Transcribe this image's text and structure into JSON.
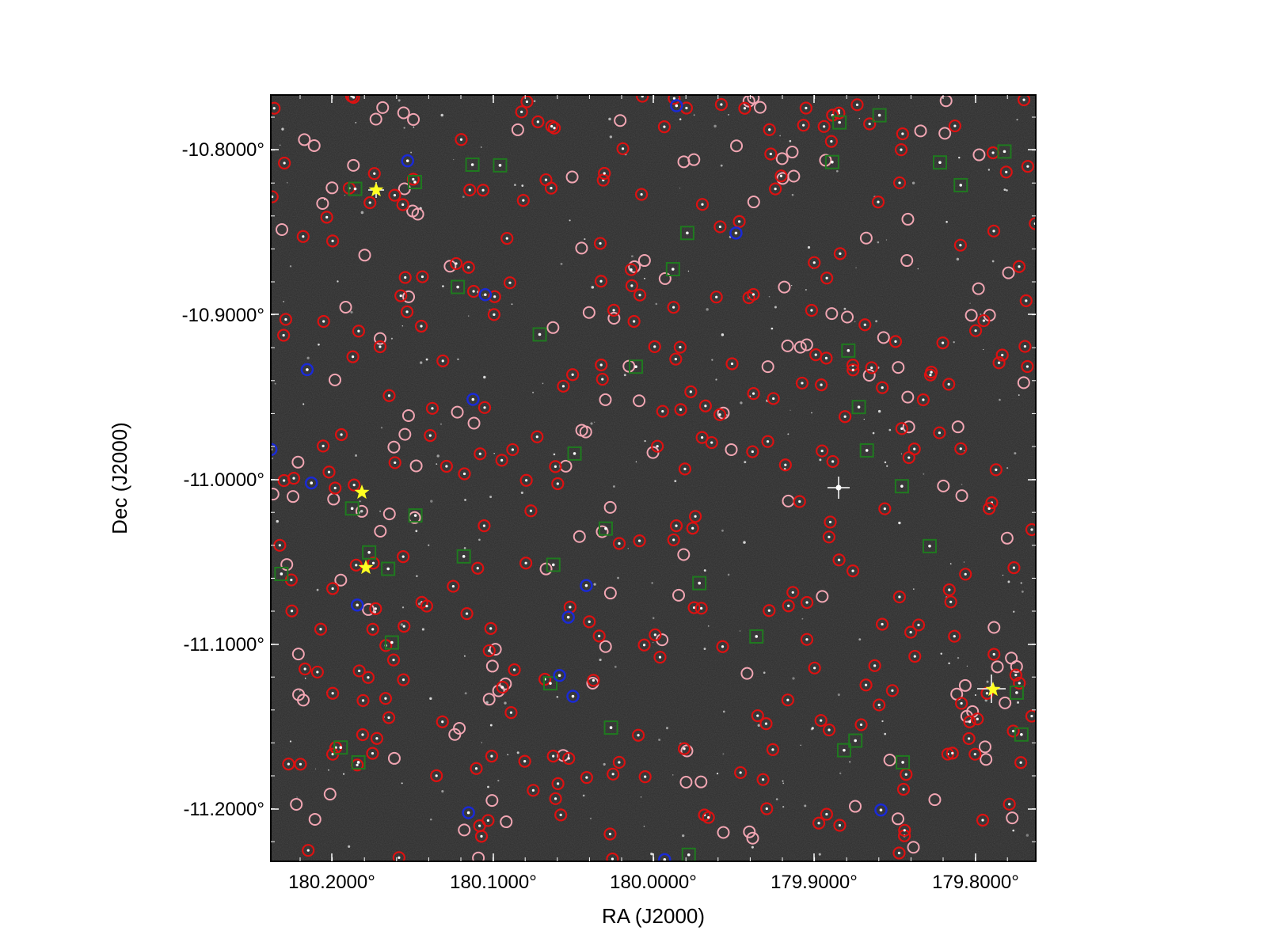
{
  "axes": {
    "xlabel": "RA (J2000)",
    "ylabel": "Dec (J2000)",
    "x_ticks": [
      "180.2000°",
      "180.1000°",
      "180.0000°",
      "179.9000°",
      "179.8000°"
    ],
    "y_ticks": [
      "-10.8000°",
      "-10.9000°",
      "-11.0000°",
      "-11.1000°",
      "-11.2000°"
    ]
  },
  "marker_colors": {
    "background": "#2b2b2b",
    "red_circle": "#dd1111",
    "pink_circle": "#f2a6b3",
    "blue_circle": "#1a2ad6",
    "green_square": "#1f7a1f",
    "yellow_star": "#ffff22"
  }
}
